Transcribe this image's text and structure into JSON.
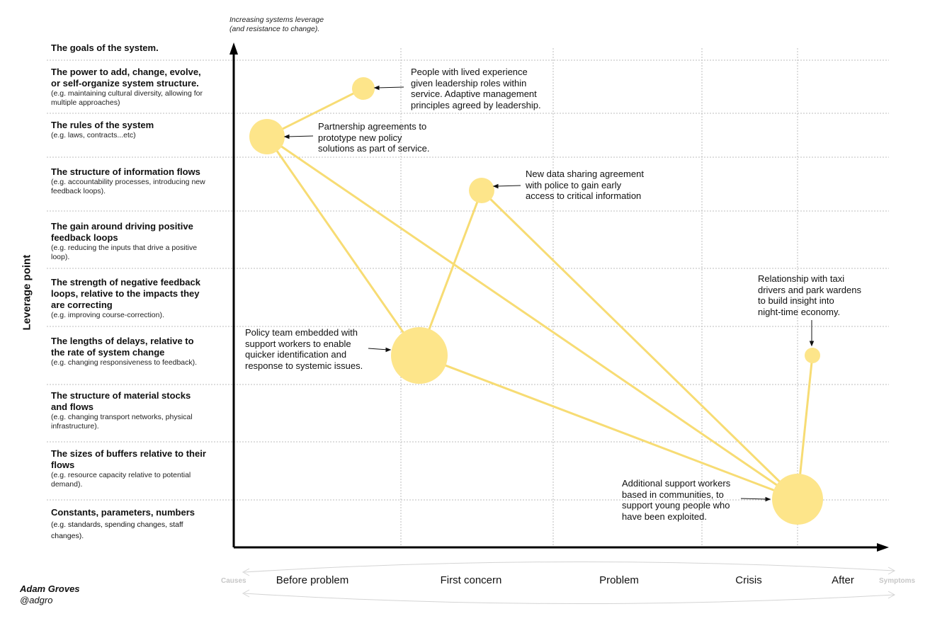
{
  "axis": {
    "y_caption_line1": "Increasing systems leverage",
    "y_caption_line2": "(and resistance to change).",
    "y_label": "Leverage point"
  },
  "leverage_points": [
    {
      "title": "The goals of the system.",
      "example": ""
    },
    {
      "title": "The power to add, change, evolve, or self-organize system structure.",
      "example": "(e.g. maintaining cultural diversity, allowing for multiple approaches)"
    },
    {
      "title": "The rules of the system",
      "example": "(e.g. laws, contracts...etc)"
    },
    {
      "title": "The structure of information flows",
      "example": "(e.g. accountability processes, introducing new feedback loops)."
    },
    {
      "title": "The gain around driving positive feedback loops",
      "example": "(e.g. reducing the inputs that drive a positive loop)."
    },
    {
      "title": "The strength of negative feedback loops, relative to the impacts they are correcting",
      "example": "(e.g. improving course-correction)."
    },
    {
      "title": "The lengths of delays, relative to the rate of system change",
      "example": "(e.g. changing responsiveness to feedback)."
    },
    {
      "title": "The structure of material stocks and flows",
      "example": "(e.g. changing transport networks, physical infrastructure)."
    },
    {
      "title": "The sizes of buffers relative to their flows",
      "example": "(e.g. resource capacity relative to potential demand)."
    },
    {
      "title": "Constants, parameters, numbers",
      "example": "(e.g. standards, spending changes, staff changes)."
    }
  ],
  "stages": {
    "start": "Causes",
    "end": "Symptoms",
    "items": [
      "Before problem",
      "First concern",
      "Problem",
      "Crisis",
      "After"
    ]
  },
  "annotations": [
    {
      "id": "lived",
      "lines": [
        "People with lived experience",
        "given leadership roles within",
        "service. Adaptive management",
        "principles agreed by leadership."
      ]
    },
    {
      "id": "partnership",
      "lines": [
        "Partnership agreements to",
        "prototype new policy",
        "solutions as part of service."
      ]
    },
    {
      "id": "data",
      "lines": [
        "New data sharing agreement",
        "with police to gain early",
        "access to critical information"
      ]
    },
    {
      "id": "taxi",
      "lines": [
        "Relationship with taxi",
        "drivers and park wardens",
        "to build insight into",
        "night-time economy."
      ]
    },
    {
      "id": "policy",
      "lines": [
        "Policy team embedded with",
        "support workers to enable",
        "quicker identification and",
        "response to systemic issues."
      ]
    },
    {
      "id": "support",
      "lines": [
        "Additional support workers",
        "based in communities, to",
        "support young people who",
        "have been exploited."
      ]
    }
  ],
  "colors": {
    "node": "#fde58a",
    "link": "#f7dc74",
    "grid": "#bdbdbd",
    "axis": "#000000"
  },
  "credit": {
    "author": "Adam Groves",
    "handle": "@adgro"
  }
}
